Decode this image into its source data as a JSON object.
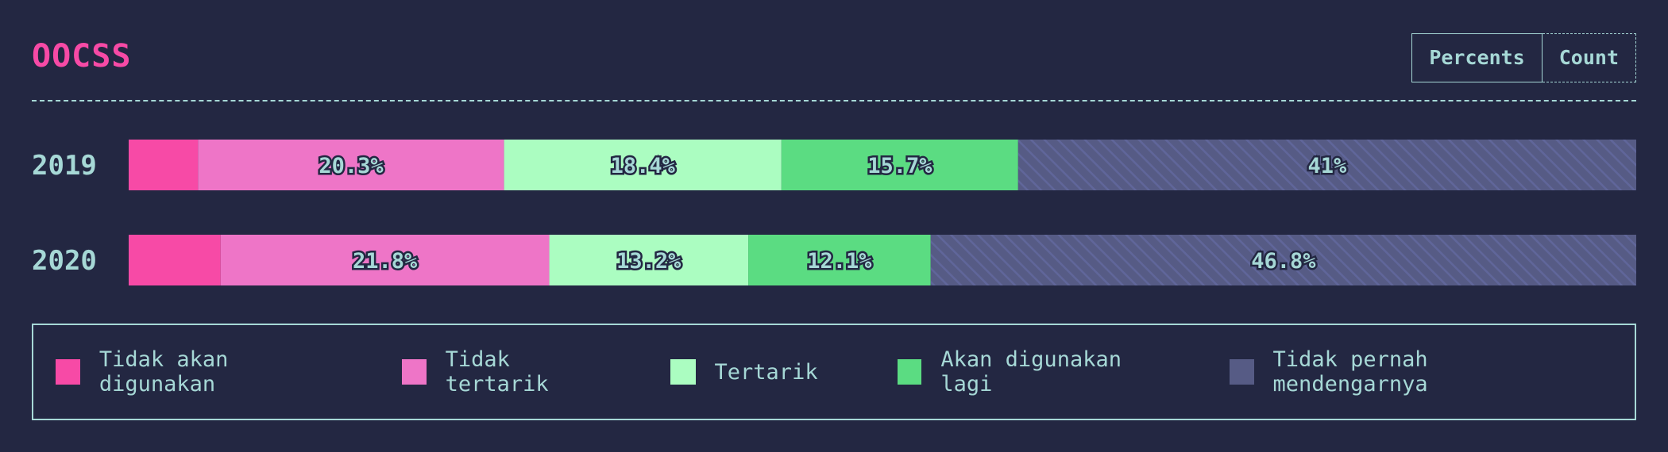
{
  "header": {
    "title": "OOCSS",
    "toggle": {
      "percents_label": "Percents",
      "count_label": "Count",
      "active": "Percents"
    }
  },
  "colors": {
    "background": "#232742",
    "text": "#a6d8d6",
    "title": "#f74aa6"
  },
  "chart_data": {
    "type": "bar",
    "orientation": "horizontal",
    "stacked": true,
    "categories": [
      "2019",
      "2020"
    ],
    "xlim": [
      0,
      100
    ],
    "series": [
      {
        "name": "Tidak akan digunakan",
        "color": "#f74aa6",
        "values": [
          4.6,
          6.1
        ],
        "labels": [
          "",
          ""
        ]
      },
      {
        "name": "Tidak tertarik",
        "color": "#ee75c7",
        "values": [
          20.3,
          21.8
        ],
        "labels": [
          "20.3%",
          "21.8%"
        ]
      },
      {
        "name": "Tertarik",
        "color": "#abfdc1",
        "values": [
          18.4,
          13.2
        ],
        "labels": [
          "18.4%",
          "13.2%"
        ]
      },
      {
        "name": "Akan digunakan lagi",
        "color": "#5bdc82",
        "values": [
          15.7,
          12.1
        ],
        "labels": [
          "15.7%",
          "12.1%"
        ]
      },
      {
        "name": "Tidak pernah mendengarnya",
        "color": "#565b85",
        "pattern": "hatched",
        "values": [
          41.0,
          46.8
        ],
        "labels": [
          "41%",
          "46.8%"
        ]
      }
    ],
    "legend": {
      "position": "bottom"
    }
  }
}
